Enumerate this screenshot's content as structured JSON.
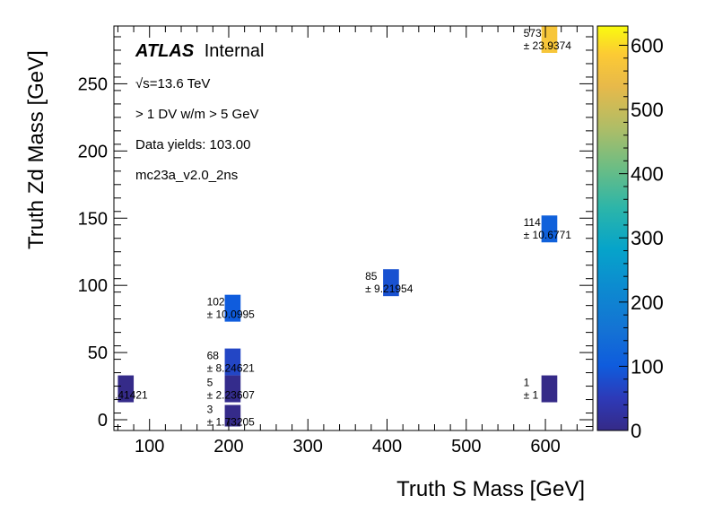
{
  "chart_data": {
    "type": "heatmap",
    "title": "",
    "xlabel": "Truth S Mass [GeV]",
    "ylabel": "Truth Zd Mass [GeV]",
    "xlim": [
      55,
      660
    ],
    "ylim": [
      -8,
      293
    ],
    "x_ticks": [
      100,
      200,
      300,
      400,
      500,
      600
    ],
    "y_ticks": [
      0,
      50,
      100,
      150,
      200,
      250
    ],
    "colorbar": {
      "min": 0,
      "max": 630,
      "ticks": [
        0,
        100,
        200,
        300,
        400,
        500,
        600
      ],
      "colormap": "parula"
    },
    "legend": {
      "atlas_bold": "ATLAS",
      "atlas_normal": "Internal",
      "energy": "√s=13.6 TeV",
      "selection": "> 1 DV w/m > 5 GeV",
      "yields": "Data yields: 103.00",
      "sample": "mc23a_v2.0_2ns"
    },
    "cells": [
      {
        "x": 70,
        "y": 23,
        "value": 2,
        "value_label": "2",
        "error_label": "± 1.41421",
        "w": 20,
        "h": 20
      },
      {
        "x": 205,
        "y": 3,
        "value": 3,
        "value_label": "3",
        "error_label": "± 1.73205",
        "w": 20,
        "h": 16
      },
      {
        "x": 205,
        "y": 23,
        "value": 5,
        "value_label": "5",
        "error_label": "± 2.23607",
        "w": 20,
        "h": 20
      },
      {
        "x": 205,
        "y": 43,
        "value": 68,
        "value_label": "68",
        "error_label": "± 8.24621",
        "w": 20,
        "h": 20
      },
      {
        "x": 205,
        "y": 83,
        "value": 102,
        "value_label": "102",
        "error_label": "± 10.0995",
        "w": 20,
        "h": 20
      },
      {
        "x": 405,
        "y": 102,
        "value": 85,
        "value_label": "85",
        "error_label": "± 9.21954",
        "w": 20,
        "h": 20
      },
      {
        "x": 605,
        "y": 142,
        "value": 114,
        "value_label": "114",
        "error_label": "± 10.6771",
        "w": 20,
        "h": 20
      },
      {
        "x": 605,
        "y": 283,
        "value": 573,
        "value_label": "573",
        "error_label": "± 23.9374",
        "w": 20,
        "h": 20
      },
      {
        "x": 605,
        "y": 23,
        "value": 1,
        "value_label": "1",
        "error_label": "± 1",
        "w": 20,
        "h": 20
      }
    ]
  }
}
